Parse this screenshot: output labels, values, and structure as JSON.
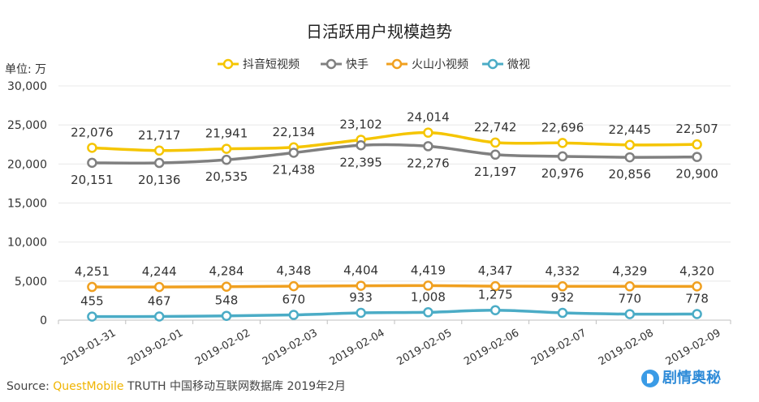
{
  "chart_data": {
    "type": "line",
    "title": "日活跃用户规模趋势",
    "unit_label": "单位: 万",
    "xlabel": "",
    "ylabel": "",
    "ylim": [
      0,
      30000
    ],
    "yticks": [
      0,
      5000,
      10000,
      15000,
      20000,
      25000,
      30000
    ],
    "ytick_labels": [
      "0",
      "5,000",
      "10,000",
      "15,000",
      "20,000",
      "25,000",
      "30,000"
    ],
    "grid": true,
    "legend_position": "top",
    "categories": [
      "2019-01-31",
      "2019-02-01",
      "2019-02-02",
      "2019-02-03",
      "2019-02-04",
      "2019-02-05",
      "2019-02-06",
      "2019-02-07",
      "2019-02-08",
      "2019-02-09"
    ],
    "series": [
      {
        "name": "抖音短视频",
        "color": "#f5c500",
        "label_pos": "above",
        "values": [
          22076,
          21717,
          21941,
          22134,
          23102,
          24014,
          22742,
          22696,
          22445,
          22507
        ],
        "labels": [
          "22,076",
          "21,717",
          "21,941",
          "22,134",
          "23,102",
          "24,014",
          "22,742",
          "22,696",
          "22,445",
          "22,507"
        ]
      },
      {
        "name": "快手",
        "color": "#808080",
        "label_pos": "below",
        "values": [
          20151,
          20136,
          20535,
          21438,
          22395,
          22276,
          21197,
          20976,
          20856,
          20900
        ],
        "labels": [
          "20,151",
          "20,136",
          "20,535",
          "21,438",
          "22,395",
          "22,276",
          "21,197",
          "20,976",
          "20,856",
          "20,900"
        ]
      },
      {
        "name": "火山小视频",
        "color": "#f0a020",
        "label_pos": "above",
        "values": [
          4251,
          4244,
          4284,
          4348,
          4404,
          4419,
          4347,
          4332,
          4329,
          4320
        ],
        "labels": [
          "4,251",
          "4,244",
          "4,284",
          "4,348",
          "4,404",
          "4,419",
          "4,347",
          "4,332",
          "4,329",
          "4,320"
        ]
      },
      {
        "name": "微视",
        "color": "#4bacc6",
        "label_pos": "above",
        "values": [
          455,
          467,
          548,
          670,
          933,
          1008,
          1275,
          932,
          770,
          778
        ],
        "labels": [
          "455",
          "467",
          "548",
          "670",
          "933",
          "1,008",
          "1,275",
          "932",
          "770",
          "778"
        ]
      }
    ]
  },
  "footer": {
    "source_prefix": "Source:",
    "brand": "QuestMobile",
    "source_rest": "TRUTH 中国移动互联网数据库 2019年2月"
  },
  "watermark": {
    "text": "剧情奥秘"
  }
}
